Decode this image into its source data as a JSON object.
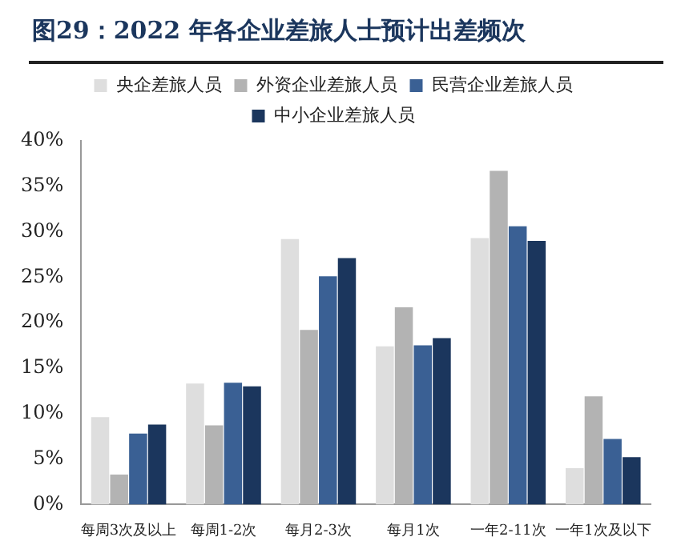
{
  "chart_data": {
    "type": "bar",
    "title": "图29：2022 年各企业差旅人士预计出差频次",
    "categories": [
      "每周3次及以上",
      "每周1-2次",
      "每月2-3次",
      "每月1次",
      "一年2-11次",
      "一年1次及以下"
    ],
    "series": [
      {
        "name": "央企差旅人员",
        "color": "#dedede",
        "values": [
          9.6,
          13.3,
          29.2,
          17.4,
          29.3,
          4.0
        ]
      },
      {
        "name": "外资企业差旅人员",
        "color": "#b3b3b3",
        "values": [
          3.3,
          8.7,
          19.2,
          21.7,
          36.7,
          11.9
        ]
      },
      {
        "name": "民营企业差旅人员",
        "color": "#3a6094",
        "values": [
          7.8,
          13.4,
          25.1,
          17.5,
          30.6,
          7.2
        ]
      },
      {
        "name": "中小企业差旅人员",
        "color": "#1b365d",
        "values": [
          8.8,
          13.0,
          27.1,
          18.3,
          29.0,
          5.2
        ]
      }
    ],
    "ylim": [
      0,
      40
    ],
    "yticks": [
      {
        "value": 0,
        "label": "0%"
      },
      {
        "value": 5,
        "label": "5%"
      },
      {
        "value": 10,
        "label": "10%"
      },
      {
        "value": 15,
        "label": "15%"
      },
      {
        "value": 20,
        "label": "20%"
      },
      {
        "value": 25,
        "label": "25%"
      },
      {
        "value": 30,
        "label": "30%"
      },
      {
        "value": 35,
        "label": "35%"
      },
      {
        "value": 40,
        "label": "40%"
      }
    ],
    "grid": false,
    "legend": "top"
  }
}
